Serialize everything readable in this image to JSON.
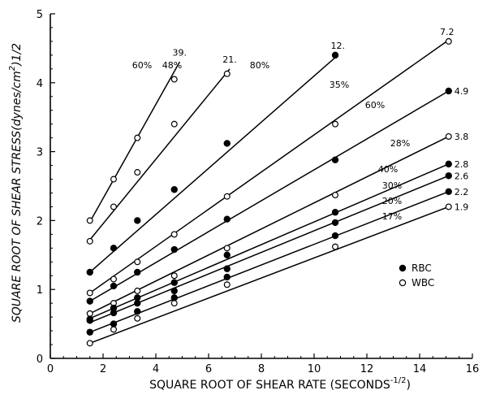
{
  "chart_data": {
    "type": "scatter",
    "xlabel": "SQUARE ROOT OF SHEAR RATE (SECONDS",
    "xlabel_sup": "-1/2",
    "xlabel_close": ")",
    "ylabel": "SQUARE ROOT OF SHEAR STRESS(dynes/cm",
    "ylabel_sup": "2",
    "ylabel_close": ")1/2",
    "xlim": [
      0,
      16
    ],
    "ylim": [
      0,
      5
    ],
    "xticks": [
      "0",
      "2",
      "4",
      "6",
      "8",
      "10",
      "12",
      "14",
      "16"
    ],
    "yticks": [
      "0",
      "1",
      "2",
      "3",
      "4",
      "5"
    ],
    "legend": [
      {
        "marker": "filled",
        "label": "RBC"
      },
      {
        "marker": "open",
        "label": "WBC"
      }
    ],
    "legend_position": "lower-right",
    "grid": false,
    "series": [
      {
        "marker": "open",
        "pct_label": "60%",
        "end_label": "39.",
        "line": [
          [
            1.5,
            1.98
          ],
          [
            4.9,
            4.3
          ]
        ],
        "points": [
          [
            1.5,
            2.0
          ],
          [
            2.4,
            2.6
          ],
          [
            3.3,
            3.2
          ],
          [
            4.7,
            4.05
          ]
        ]
      },
      {
        "marker": "open",
        "pct_label": "48%",
        "end_label": "21.",
        "line": [
          [
            1.5,
            1.72
          ],
          [
            6.8,
            4.2
          ]
        ],
        "points": [
          [
            1.5,
            1.7
          ],
          [
            2.4,
            2.2
          ],
          [
            3.3,
            2.7
          ],
          [
            4.7,
            3.4
          ],
          [
            6.7,
            4.13
          ]
        ]
      },
      {
        "marker": "filled",
        "pct_label": "80%",
        "end_label": "12.",
        "line": [
          [
            1.5,
            1.25
          ],
          [
            10.9,
            4.4
          ]
        ],
        "points": [
          [
            1.5,
            1.25
          ],
          [
            2.4,
            1.6
          ],
          [
            3.3,
            2.0
          ],
          [
            4.7,
            2.45
          ],
          [
            6.7,
            3.12
          ],
          [
            10.8,
            4.4
          ]
        ]
      },
      {
        "marker": "open",
        "pct_label": "35%",
        "end_label": "7.2",
        "line": [
          [
            1.5,
            0.95
          ],
          [
            15.1,
            4.62
          ]
        ],
        "points": [
          [
            1.5,
            0.95
          ],
          [
            2.4,
            1.15
          ],
          [
            3.3,
            1.4
          ],
          [
            4.7,
            1.8
          ],
          [
            6.7,
            2.35
          ],
          [
            10.8,
            3.4
          ],
          [
            15.1,
            4.6
          ]
        ]
      },
      {
        "marker": "filled",
        "pct_label": "60%",
        "end_label": "4.9",
        "line": [
          [
            1.5,
            0.83
          ],
          [
            15.1,
            3.88
          ]
        ],
        "points": [
          [
            1.5,
            0.83
          ],
          [
            2.4,
            1.05
          ],
          [
            3.3,
            1.25
          ],
          [
            4.7,
            1.58
          ],
          [
            6.7,
            2.02
          ],
          [
            10.8,
            2.88
          ],
          [
            15.1,
            3.88
          ]
        ]
      },
      {
        "marker": "open",
        "pct_label": "28%",
        "end_label": "3.8",
        "line": [
          [
            1.5,
            0.65
          ],
          [
            15.1,
            3.22
          ]
        ],
        "points": [
          [
            1.5,
            0.65
          ],
          [
            2.4,
            0.8
          ],
          [
            3.3,
            0.98
          ],
          [
            4.7,
            1.2
          ],
          [
            6.7,
            1.6
          ],
          [
            10.8,
            2.37
          ],
          [
            15.1,
            3.22
          ]
        ]
      },
      {
        "marker": "filled",
        "pct_label": "40%",
        "end_label": "2.8",
        "line": [
          [
            1.5,
            0.58
          ],
          [
            15.1,
            2.82
          ]
        ],
        "points": [
          [
            1.5,
            0.57
          ],
          [
            2.4,
            0.73
          ],
          [
            3.3,
            0.88
          ],
          [
            4.7,
            1.1
          ],
          [
            6.7,
            1.5
          ],
          [
            10.8,
            2.12
          ],
          [
            15.1,
            2.82
          ]
        ]
      },
      {
        "marker": "filled",
        "pct_label": "30%",
        "end_label": "2.6",
        "line": [
          [
            1.5,
            0.52
          ],
          [
            15.1,
            2.65
          ]
        ],
        "points": [
          [
            1.5,
            0.55
          ],
          [
            2.4,
            0.66
          ],
          [
            3.3,
            0.8
          ],
          [
            4.7,
            0.98
          ],
          [
            6.7,
            1.3
          ],
          [
            10.8,
            1.97
          ],
          [
            15.1,
            2.65
          ]
        ]
      },
      {
        "marker": "filled",
        "pct_label": "20%",
        "end_label": "2.2",
        "line": [
          [
            1.5,
            0.38
          ],
          [
            15.1,
            2.42
          ]
        ],
        "points": [
          [
            1.5,
            0.38
          ],
          [
            2.4,
            0.5
          ],
          [
            3.3,
            0.68
          ],
          [
            4.7,
            0.88
          ],
          [
            6.7,
            1.18
          ],
          [
            10.8,
            1.78
          ],
          [
            15.1,
            2.42
          ]
        ]
      },
      {
        "marker": "open",
        "pct_label": "17%",
        "end_label": "1.9",
        "line": [
          [
            1.5,
            0.22
          ],
          [
            15.1,
            2.2
          ]
        ],
        "points": [
          [
            1.5,
            0.22
          ],
          [
            2.4,
            0.42
          ],
          [
            3.3,
            0.58
          ],
          [
            4.7,
            0.8
          ],
          [
            6.7,
            1.07
          ],
          [
            10.8,
            1.62
          ],
          [
            15.1,
            2.2
          ]
        ]
      }
    ]
  }
}
